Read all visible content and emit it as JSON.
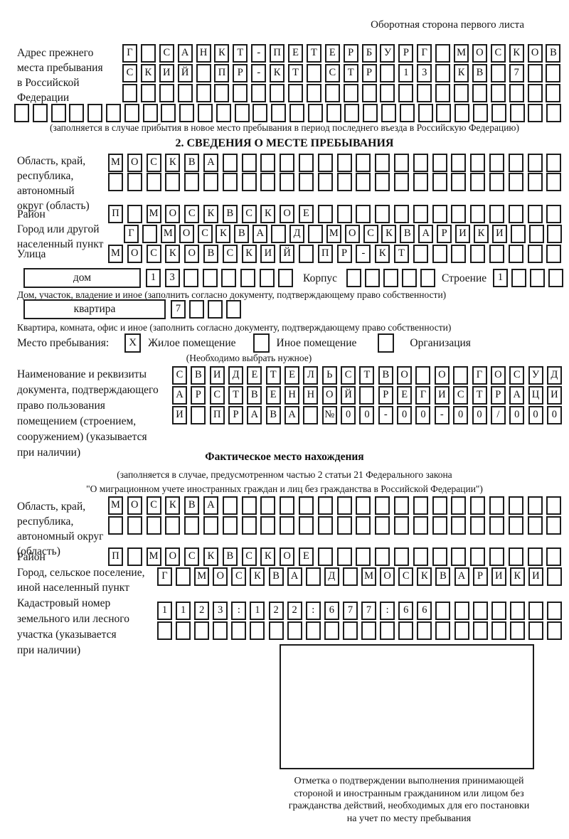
{
  "page": {
    "header_note": "Оборотная сторона первого листа"
  },
  "prev_address": {
    "label": "Адрес прежнего\nместа пребывания\nв Российской\nФедерации",
    "row1": {
      "count": 24,
      "text": "Г САНКТ-ПЕТЕРБУРГ МОСКОВ"
    },
    "row2": {
      "count": 24,
      "text": "СКИЙ ПР-КТ СТР 13 КВ 7"
    },
    "row3": {
      "count": 24,
      "text": ""
    },
    "row4": {
      "count": 30,
      "text": ""
    },
    "note": "(заполняется в случае прибытия в новое место пребывания в период последнего въезда в Российскую Федерацию)"
  },
  "section2": {
    "title": "2. СВЕДЕНИЯ О МЕСТЕ ПРЕБЫВАНИЯ",
    "oblast": {
      "label": "Область, край,\nреспублика,\nавтономный\nокруг (область)",
      "row1": {
        "count": 24,
        "text": "МОСКВА"
      },
      "row2": {
        "count": 24,
        "text": ""
      }
    },
    "raion": {
      "label": "Район",
      "row": {
        "count": 24,
        "text": "П МОСКВСКОЕ"
      }
    },
    "city": {
      "label": "Город или другой\nнаселенный пункт",
      "row": {
        "count": 24,
        "text": "Г МОСКВА Д МОСКВАРИКИ"
      }
    },
    "street": {
      "label": "Улица",
      "row": {
        "count": 24,
        "text": "МОСКОВСКИЙ ПР-КТ"
      }
    },
    "house": {
      "box_label": "дом",
      "cells": {
        "count": 8,
        "text": "13"
      },
      "korpus_label": "Корпус",
      "korpus_cells": {
        "count": 5,
        "text": ""
      },
      "stroenie_label": "Строение",
      "stroenie_cells": {
        "count": 4,
        "text": "1"
      },
      "note": "Дом, участок, владение и иное (заполнить согласно документу, подтверждающему право собственности)"
    },
    "apartment": {
      "box_label": "квартира",
      "cells": {
        "count": 4,
        "text": "7"
      },
      "note": "Квартира, комната, офис и иное (заполнить согласно документу, подтверждающему право собственности)"
    },
    "stay_type": {
      "label": "Место пребывания:",
      "options": [
        {
          "mark": "X",
          "label": "Жилое помещение"
        },
        {
          "mark": "",
          "label": "Иное помещение"
        },
        {
          "mark": "",
          "label": "Организация"
        }
      ],
      "note": "(Необходимо выбрать нужное)"
    },
    "document": {
      "label": "Наименование и реквизиты\nдокумента, подтверждающего\nправо пользования\nпомещением (строением,\nсооружением) (указывается\nпри наличии)",
      "row1": {
        "count": 21,
        "text": "СВИДЕТЕЛЬСТВО О ГОСУД"
      },
      "row2": {
        "count": 21,
        "text": "АРСТВЕННОЙ РЕГИСТРАЦИ"
      },
      "row3": {
        "count": 21,
        "text": "И ПРАВА №00-00-00/000"
      }
    }
  },
  "actual_location": {
    "title": "Фактическое место нахождения",
    "note1": "(заполняется в случае, предусмотренном частью 2 статьи 21 Федерального закона",
    "note2": "\"О миграционном учете иностранных граждан и лиц без гражданства в Российской Федерации\")",
    "oblast": {
      "label": "Область, край,\nреспублика,\nавтономный округ\n(область)",
      "row1": {
        "count": 24,
        "text": "МОСКВА"
      },
      "row2": {
        "count": 24,
        "text": ""
      }
    },
    "raion": {
      "label": "Район",
      "row": {
        "count": 24,
        "text": "П МОСКВСКОЕ"
      }
    },
    "city": {
      "label": "Город, сельское поселение,\nиной населенный пункт",
      "row": {
        "count": 22,
        "text": "Г МОСКВА Д МОСКВАРИКИ"
      }
    },
    "cadastre": {
      "label": "Кадастровый номер\nземельного или лесного\nучастка (указывается\nпри наличии)",
      "row1": {
        "count": 22,
        "text": "1123:122:677:66"
      },
      "row2": {
        "count": 22,
        "text": ""
      }
    },
    "mark_box_note": "Отметка о подтверждении выполнения принимающей\nстороной и иностранным гражданином или лицом без\nгражданства действий, необходимых для его постановки\nна учет по месту пребывания"
  }
}
